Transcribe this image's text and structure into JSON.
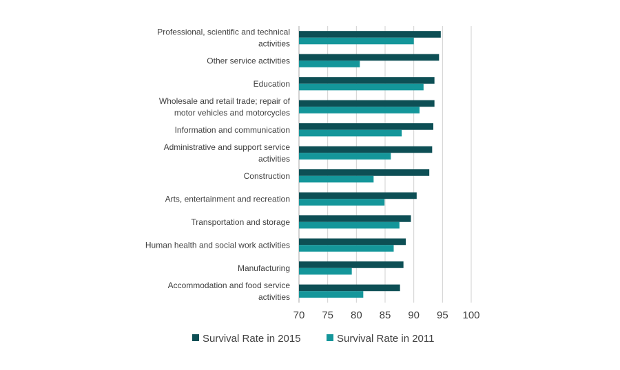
{
  "chart_data": {
    "type": "bar",
    "orientation": "horizontal",
    "title": "",
    "xlabel": "",
    "ylabel": "",
    "xlim": [
      70,
      100
    ],
    "x_ticks": [
      70,
      75,
      80,
      85,
      90,
      95,
      100
    ],
    "grid": true,
    "legend_position": "bottom",
    "categories": [
      [
        "Professional, scientific and technical",
        "activities"
      ],
      [
        "Other service activities"
      ],
      [
        "Education"
      ],
      [
        "Wholesale and retail trade; repair of",
        "motor vehicles and motorcycles"
      ],
      [
        "Information and communication"
      ],
      [
        "Administrative and support service",
        "activities"
      ],
      [
        "Construction"
      ],
      [
        "Arts, entertainment and recreation"
      ],
      [
        "Transportation and storage"
      ],
      [
        "Human health and social work activities"
      ],
      [
        "Manufacturing"
      ],
      [
        "Accommodation and food service",
        "activities"
      ]
    ],
    "series": [
      {
        "name": "Survival Rate in 2015",
        "color": "#0d4f55",
        "values": [
          94.7,
          94.4,
          93.6,
          93.6,
          93.4,
          93.2,
          92.7,
          90.5,
          89.5,
          88.6,
          88.2,
          87.6
        ]
      },
      {
        "name": "Survival Rate in 2011",
        "color": "#14969a",
        "values": [
          90.0,
          80.6,
          91.7,
          91.0,
          87.9,
          86.0,
          83.0,
          84.9,
          87.5,
          86.5,
          79.2,
          81.2
        ]
      }
    ]
  }
}
